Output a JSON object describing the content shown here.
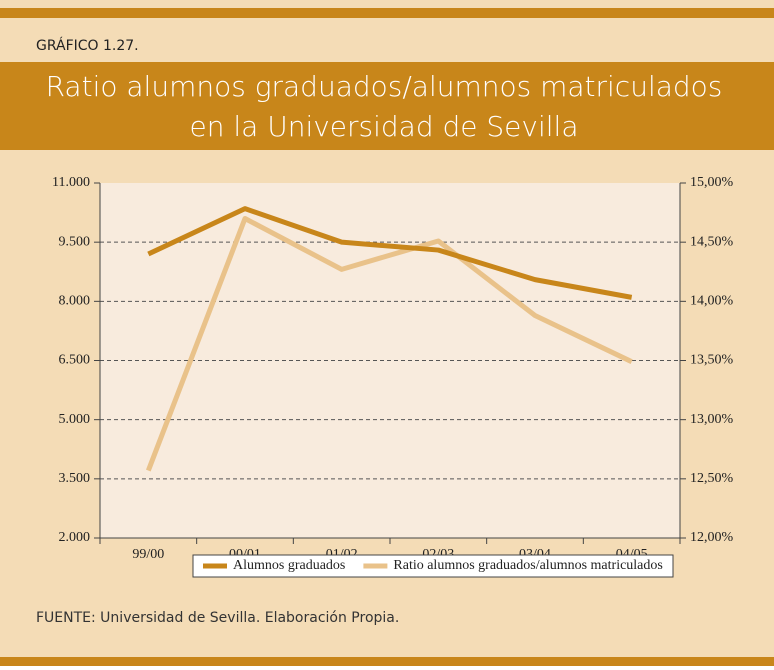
{
  "chart_data": {
    "type": "line",
    "label": "GRÁFICO 1.27.",
    "title": [
      "Ratio alumnos graduados/alumnos matriculados",
      "en la Universidad de Sevilla"
    ],
    "categories": [
      "99/00",
      "00/01",
      "01/02",
      "02/03",
      "03/04",
      "04/05"
    ],
    "series": [
      {
        "name": "Alumnos graduados",
        "color": "#c8861a",
        "values": [
          9200,
          10350,
          9500,
          9300,
          8550,
          8100
        ]
      },
      {
        "name": "Ratio alumnos graduados/alumnos matriculados",
        "color": "#e9c28a",
        "axis": "y2",
        "values": [
          12.57,
          14.7,
          14.27,
          14.51,
          13.88,
          13.49
        ]
      }
    ],
    "ylim": [
      2000,
      11000
    ],
    "yticks": [
      {
        "value": 2000,
        "label": "2.000"
      },
      {
        "value": 3500,
        "label": "3.500"
      },
      {
        "value": 5000,
        "label": "5.000"
      },
      {
        "value": 6500,
        "label": "6.500"
      },
      {
        "value": 8000,
        "label": "8.000"
      },
      {
        "value": 9500,
        "label": "9.500"
      },
      {
        "value": 11000,
        "label": "11.000"
      }
    ],
    "y2lim": [
      12,
      15
    ],
    "y2ticks": [
      {
        "value": 12,
        "label": "12,00%"
      },
      {
        "value": 12.5,
        "label": "12,50%"
      },
      {
        "value": 13,
        "label": "13,00%"
      },
      {
        "value": 13.5,
        "label": "13,50%"
      },
      {
        "value": 14,
        "label": "14,00%"
      },
      {
        "value": 14.5,
        "label": "14,50%"
      },
      {
        "value": 15,
        "label": "15,00%"
      }
    ],
    "grid": true,
    "legend": "bottom",
    "source": "FUENTE: Universidad de Sevilla. Elaboración Propia."
  }
}
